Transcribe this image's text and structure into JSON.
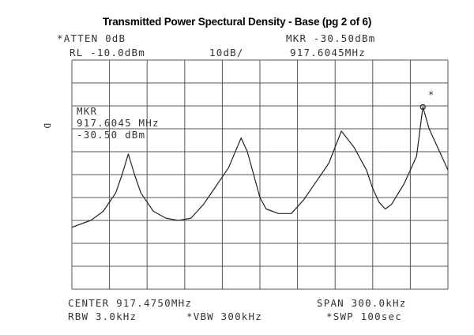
{
  "title": "Transmitted Power Spectural Density  - Base (pg 2 of  6)",
  "header": {
    "atten": "*ATTEN 0dB",
    "mkr_label": "MKR -30.50dBm",
    "rl": "RL -10.0dBm",
    "scale": "10dB/",
    "mkr_freq": "917.6045MHz"
  },
  "marker_box": {
    "line1": "MKR",
    "line2": "917.6045 MHz",
    "line3": "-30.50 dBm"
  },
  "side_label": "D",
  "marker_symbol": "*",
  "footer": {
    "center": "CENTER 917.4750MHz",
    "span": "SPAN 300.0kHz",
    "rbw": "RBW 3.0kHz",
    "vbw": "*VBW 300kHz",
    "swp": "*SWP 100sec"
  },
  "chart_data": {
    "type": "line",
    "x_unit": "MHz",
    "y_unit": "dBm",
    "x_range": [
      917.325,
      917.625
    ],
    "y_range": [
      -110,
      -10
    ],
    "grid": true,
    "series": [
      {
        "x": [
          917.325,
          917.34,
          917.35,
          917.36,
          917.365,
          917.37,
          917.375,
          917.38,
          917.39,
          917.4,
          917.41,
          917.42,
          917.43,
          917.44,
          917.45,
          917.46,
          917.465,
          917.47,
          917.475,
          917.48,
          917.49,
          917.5,
          917.51,
          917.52,
          917.53,
          917.54,
          917.55,
          917.56,
          917.565,
          917.57,
          917.575,
          917.58,
          917.59,
          917.6,
          917.605,
          917.61,
          917.62,
          917.625
        ],
        "y": [
          -83,
          -80,
          -76,
          -68,
          -60,
          -51,
          -60,
          -68,
          -76,
          -79,
          -80,
          -79,
          -73,
          -65,
          -57,
          -44,
          -50,
          -60,
          -70,
          -75,
          -77,
          -77,
          -71,
          -63,
          -55,
          -41,
          -48,
          -58,
          -66,
          -72,
          -75,
          -73,
          -64,
          -52,
          -30.5,
          -40,
          -52,
          -58
        ]
      }
    ]
  }
}
